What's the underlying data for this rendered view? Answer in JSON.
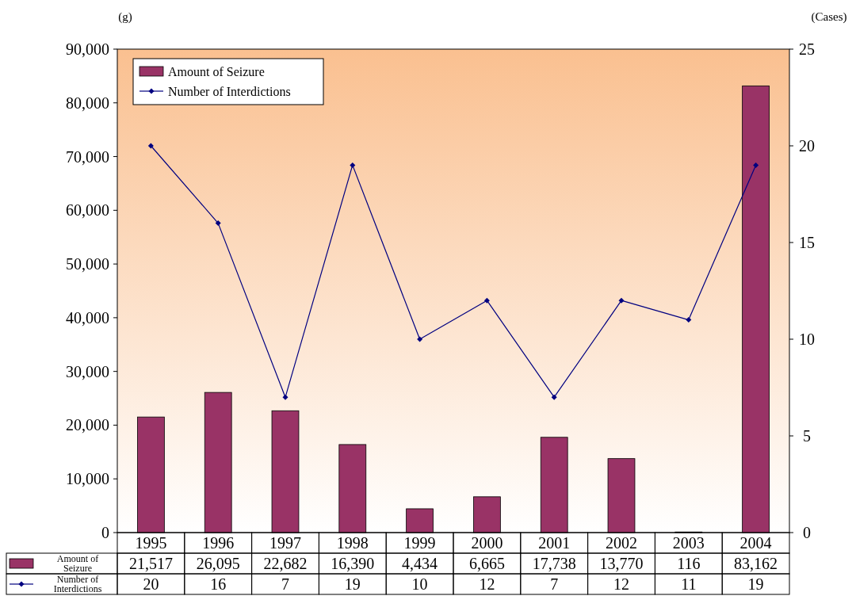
{
  "chart_data": {
    "type": "bar",
    "categories": [
      "1995",
      "1996",
      "1997",
      "1998",
      "1999",
      "2000",
      "2001",
      "2002",
      "2003",
      "2004"
    ],
    "ylabel": "(g)",
    "y2label": "(Cases)",
    "ylim": [
      0,
      90000
    ],
    "yticks": [
      0,
      {
        "value": 10000,
        "label": "10,000"
      },
      {
        "value": 20000,
        "label": "20,000"
      },
      {
        "value": 30000,
        "label": "30,000"
      },
      {
        "value": 40000,
        "label": "40,000"
      },
      {
        "value": 50000,
        "label": "50,000"
      },
      {
        "value": 60000,
        "label": "60,000"
      },
      {
        "value": 70000,
        "label": "70,000"
      },
      {
        "value": 80000,
        "label": "80,000"
      },
      {
        "value": 90000,
        "label": "90,000"
      }
    ],
    "y2lim": [
      0,
      25
    ],
    "y2ticks": [
      0,
      5,
      10,
      15,
      20,
      25
    ],
    "legend": "top left",
    "grid": false,
    "marker": "diamond",
    "line_style": "solid",
    "series": [
      {
        "name": "Amount of Seizure",
        "color": "#993366",
        "values": [
          21517,
          26095,
          22682,
          16390,
          4434,
          6665,
          17738,
          13770,
          116,
          83162
        ],
        "value_labels": [
          "21,517",
          "26,095",
          "22,682",
          "16,390",
          "4,434",
          "6,665",
          "17,738",
          "13,770",
          "116",
          "83,162"
        ]
      },
      {
        "name": "Number of Interdictions",
        "type": "line",
        "axis": "y2",
        "color": "#000080",
        "values": [
          20,
          16,
          7,
          19,
          10,
          12,
          7,
          12,
          11,
          19
        ],
        "value_labels": [
          "20",
          "16",
          "7",
          "19",
          "10",
          "12",
          "7",
          "12",
          "11",
          "19"
        ]
      }
    ]
  }
}
